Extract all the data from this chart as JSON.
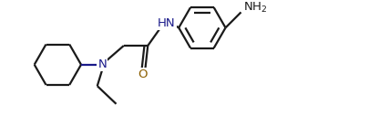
{
  "bg_color": "#ffffff",
  "line_color": "#1a1a1a",
  "heteroatom_color": "#1a1a8a",
  "o_color": "#8b5e00",
  "nh2_color": "#1a1a1a",
  "line_width": 1.6,
  "font_size": 9.5,
  "figsize": [
    4.06,
    1.5
  ],
  "dpi": 100,
  "xlim": [
    0,
    10.5
  ],
  "ylim": [
    0,
    3.9
  ]
}
